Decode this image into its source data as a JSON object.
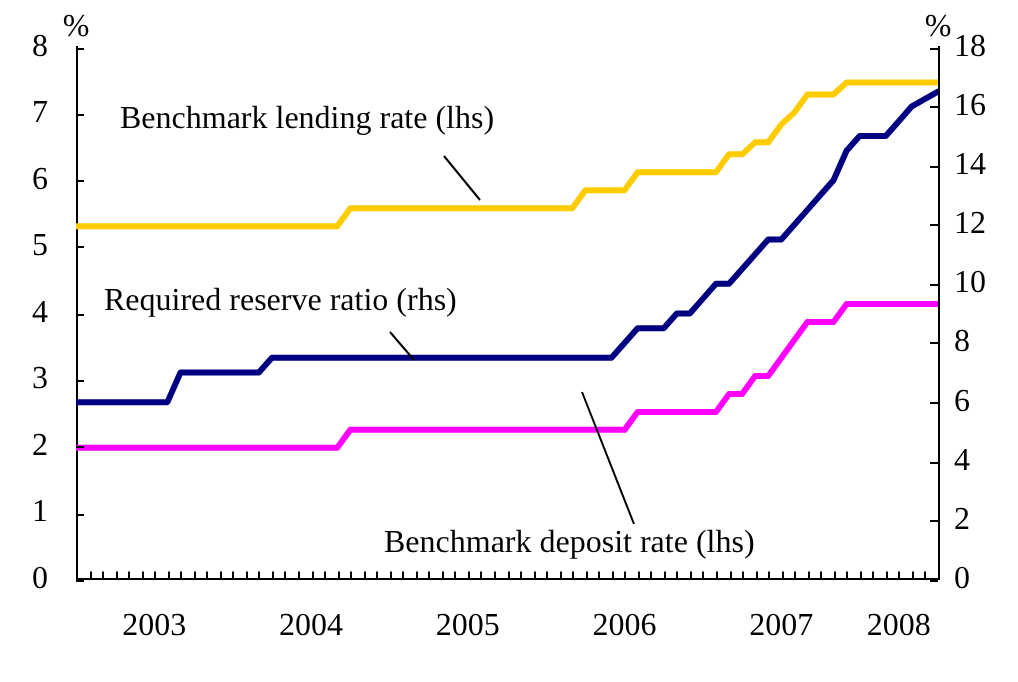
{
  "chart_data": {
    "type": "line",
    "ylabel": "%",
    "y2label": "%",
    "xlim": [
      "2003-01",
      "2008-07"
    ],
    "xticks": [
      {
        "value": "2003-01",
        "label": null
      },
      {
        "value": "2003-02",
        "label": null
      },
      {
        "value": "2003-03",
        "label": null
      },
      {
        "value": "2003-04",
        "label": null
      },
      {
        "value": "2003-05",
        "label": null
      },
      {
        "value": "2003-06",
        "label": null
      },
      {
        "value": "2003-07",
        "label": "2003"
      },
      {
        "value": "2003-08",
        "label": null
      },
      {
        "value": "2003-09",
        "label": null
      },
      {
        "value": "2003-10",
        "label": null
      },
      {
        "value": "2003-11",
        "label": null
      },
      {
        "value": "2003-12",
        "label": null
      },
      {
        "value": "2004-01",
        "label": null
      },
      {
        "value": "2004-02",
        "label": null
      },
      {
        "value": "2004-03",
        "label": null
      },
      {
        "value": "2004-04",
        "label": null
      },
      {
        "value": "2004-05",
        "label": null
      },
      {
        "value": "2004-06",
        "label": null
      },
      {
        "value": "2004-07",
        "label": "2004"
      },
      {
        "value": "2004-08",
        "label": null
      },
      {
        "value": "2004-09",
        "label": null
      },
      {
        "value": "2004-10",
        "label": null
      },
      {
        "value": "2004-11",
        "label": null
      },
      {
        "value": "2004-12",
        "label": null
      },
      {
        "value": "2005-01",
        "label": null
      },
      {
        "value": "2005-02",
        "label": null
      },
      {
        "value": "2005-03",
        "label": null
      },
      {
        "value": "2005-04",
        "label": null
      },
      {
        "value": "2005-05",
        "label": null
      },
      {
        "value": "2005-06",
        "label": null
      },
      {
        "value": "2005-07",
        "label": "2005"
      },
      {
        "value": "2005-08",
        "label": null
      },
      {
        "value": "2005-09",
        "label": null
      },
      {
        "value": "2005-10",
        "label": null
      },
      {
        "value": "2005-11",
        "label": null
      },
      {
        "value": "2005-12",
        "label": null
      },
      {
        "value": "2006-01",
        "label": null
      },
      {
        "value": "2006-02",
        "label": null
      },
      {
        "value": "2006-03",
        "label": null
      },
      {
        "value": "2006-04",
        "label": null
      },
      {
        "value": "2006-05",
        "label": null
      },
      {
        "value": "2006-06",
        "label": null
      },
      {
        "value": "2006-07",
        "label": "2006"
      },
      {
        "value": "2006-08",
        "label": null
      },
      {
        "value": "2006-09",
        "label": null
      },
      {
        "value": "2006-10",
        "label": null
      },
      {
        "value": "2006-11",
        "label": null
      },
      {
        "value": "2006-12",
        "label": null
      },
      {
        "value": "2007-01",
        "label": null
      },
      {
        "value": "2007-02",
        "label": null
      },
      {
        "value": "2007-03",
        "label": null
      },
      {
        "value": "2007-04",
        "label": null
      },
      {
        "value": "2007-05",
        "label": null
      },
      {
        "value": "2007-06",
        "label": null
      },
      {
        "value": "2007-07",
        "label": "2007"
      },
      {
        "value": "2007-08",
        "label": null
      },
      {
        "value": "2007-09",
        "label": null
      },
      {
        "value": "2007-10",
        "label": null
      },
      {
        "value": "2007-11",
        "label": null
      },
      {
        "value": "2007-12",
        "label": null
      },
      {
        "value": "2008-01",
        "label": null
      },
      {
        "value": "2008-02",
        "label": null
      },
      {
        "value": "2008-03",
        "label": null
      },
      {
        "value": "2008-04",
        "label": "2008"
      },
      {
        "value": "2008-05",
        "label": null
      },
      {
        "value": "2008-06",
        "label": null
      },
      {
        "value": "2008-07",
        "label": null
      }
    ],
    "ylim": [
      0,
      8
    ],
    "yticks": [
      0,
      1,
      2,
      3,
      4,
      5,
      6,
      7,
      8
    ],
    "y2lim": [
      0,
      18
    ],
    "y2ticks": [
      0,
      2,
      4,
      6,
      8,
      10,
      12,
      14,
      16,
      18
    ],
    "grid": false,
    "legend": false,
    "marker": "none",
    "line_style": "solid",
    "series": [
      {
        "name": "Benchmark lending rate (lhs)",
        "color": "#ffcc00",
        "x": [
          "2003-01",
          "2004-09",
          "2004-10",
          "2006-03",
          "2006-04",
          "2006-07",
          "2006-08",
          "2007-02",
          "2007-03",
          "2007-04",
          "2007-05",
          "2007-06",
          "2007-07",
          "2007-08",
          "2007-09",
          "2007-11",
          "2007-12",
          "2008-07"
        ],
        "values": [
          5.31,
          5.31,
          5.58,
          5.58,
          5.85,
          5.85,
          6.12,
          6.12,
          6.39,
          6.39,
          6.57,
          6.57,
          6.84,
          7.02,
          7.29,
          7.29,
          7.47,
          7.47
        ]
      },
      {
        "name": "Required reserve ratio (rhs)",
        "color": "#000080",
        "axis": "y2",
        "x": [
          "2003-01",
          "2003-08",
          "2003-09",
          "2004-03",
          "2004-04",
          "2006-06",
          "2006-07",
          "2006-08",
          "2006-10",
          "2006-11",
          "2006-12",
          "2007-01",
          "2007-02",
          "2007-03",
          "2007-04",
          "2007-05",
          "2007-06",
          "2007-07",
          "2007-08",
          "2007-09",
          "2007-10",
          "2007-11",
          "2007-12",
          "2008-01",
          "2008-03",
          "2008-04",
          "2008-05",
          "2008-07"
        ],
        "values": [
          6,
          6,
          7,
          7,
          7.5,
          7.5,
          8,
          8.5,
          8.5,
          9,
          9,
          9.5,
          10,
          10,
          10.5,
          11,
          11.5,
          11.5,
          12,
          12.5,
          13,
          13.5,
          14.5,
          15,
          15,
          15.5,
          16,
          16.5
        ]
      },
      {
        "name": "Benchmark deposit rate (lhs)",
        "color": "#ff00ff",
        "x": [
          "2003-01",
          "2004-09",
          "2004-10",
          "2006-07",
          "2006-08",
          "2007-02",
          "2007-03",
          "2007-04",
          "2007-05",
          "2007-06",
          "2007-07",
          "2007-08",
          "2007-09",
          "2007-11",
          "2007-12",
          "2008-07"
        ],
        "values": [
          1.98,
          1.98,
          2.25,
          2.25,
          2.52,
          2.52,
          2.79,
          2.79,
          3.06,
          3.06,
          3.33,
          3.6,
          3.87,
          3.87,
          4.14,
          4.14
        ]
      }
    ]
  }
}
